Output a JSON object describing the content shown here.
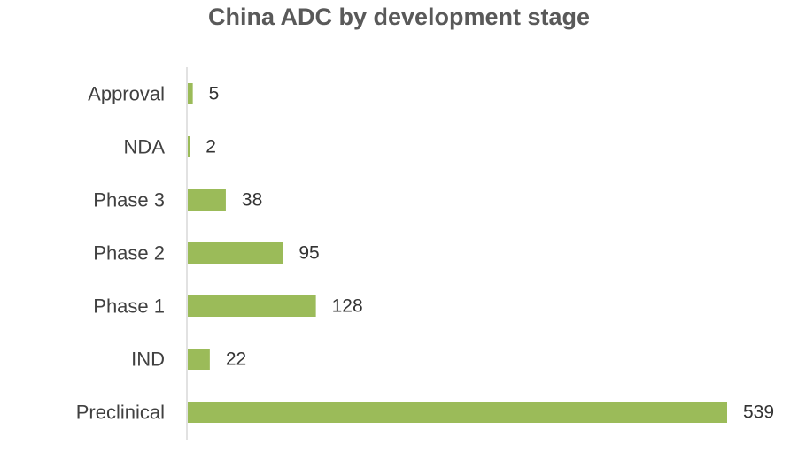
{
  "chart_data": {
    "type": "bar",
    "orientation": "horizontal",
    "title": "China ADC by development stage",
    "categories": [
      "Approval",
      "NDA",
      "Phase 3",
      "Phase 2",
      "Phase 1",
      "IND",
      "Preclinical"
    ],
    "values": [
      5,
      2,
      38,
      95,
      128,
      22,
      539
    ],
    "bar_color": "#9BBB59",
    "axis_color": "#D9D9D9",
    "xlim": [
      0,
      539
    ],
    "grid": false,
    "legend": "none",
    "data_labels": true
  }
}
